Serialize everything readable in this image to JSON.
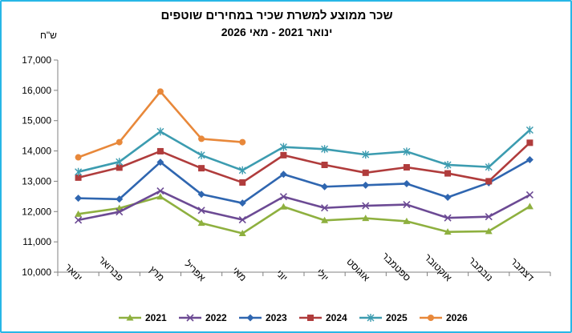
{
  "chart_data": {
    "type": "line",
    "title": "שכר ממוצע למשרת שכיר במחירים שוטפים",
    "subtitle": "ינואר 2021 - מאי 2026",
    "ylabel": "ש\"ח",
    "ylim": [
      10000,
      17000
    ],
    "yticks": [
      "10,000",
      "11,000",
      "12,000",
      "13,000",
      "14,000",
      "15,000",
      "16,000",
      "17,000"
    ],
    "categories": [
      "ינואר",
      "פברואר",
      "מרץ",
      "אפריל",
      "מאי",
      "יוני",
      "יולי",
      "אוגוסט",
      "ספטמבר",
      "אוקטובר",
      "נובמבר",
      "דצמבר"
    ],
    "legend_position": "bottom",
    "series": [
      {
        "name": "2021",
        "color": "#8eb03f",
        "marker": "triangle",
        "values": [
          11920,
          12110,
          12490,
          11620,
          11280,
          12160,
          11710,
          11780,
          11680,
          11330,
          11350,
          12170
        ]
      },
      {
        "name": "2022",
        "color": "#6c4a94",
        "marker": "x",
        "values": [
          11720,
          11990,
          12680,
          12040,
          11730,
          12490,
          12120,
          12190,
          12230,
          11790,
          11830,
          12550
        ]
      },
      {
        "name": "2023",
        "color": "#2f66b0",
        "marker": "diamond",
        "values": [
          12440,
          12410,
          13630,
          12570,
          12280,
          13230,
          12820,
          12870,
          12920,
          12470,
          12950,
          13710
        ]
      },
      {
        "name": "2024",
        "color": "#b03c3c",
        "marker": "square",
        "values": [
          13120,
          13450,
          13990,
          13430,
          12960,
          13860,
          13540,
          13280,
          13460,
          13260,
          13000,
          14270
        ]
      },
      {
        "name": "2025",
        "color": "#3c9cb0",
        "marker": "star",
        "values": [
          13310,
          13640,
          14640,
          13860,
          13360,
          14130,
          14060,
          13880,
          13980,
          13540,
          13470,
          14690
        ]
      },
      {
        "name": "2026",
        "color": "#e8883a",
        "marker": "circle",
        "values": [
          13790,
          14290,
          15960,
          14400,
          14290,
          null,
          null,
          null,
          null,
          null,
          null,
          null
        ]
      }
    ]
  }
}
